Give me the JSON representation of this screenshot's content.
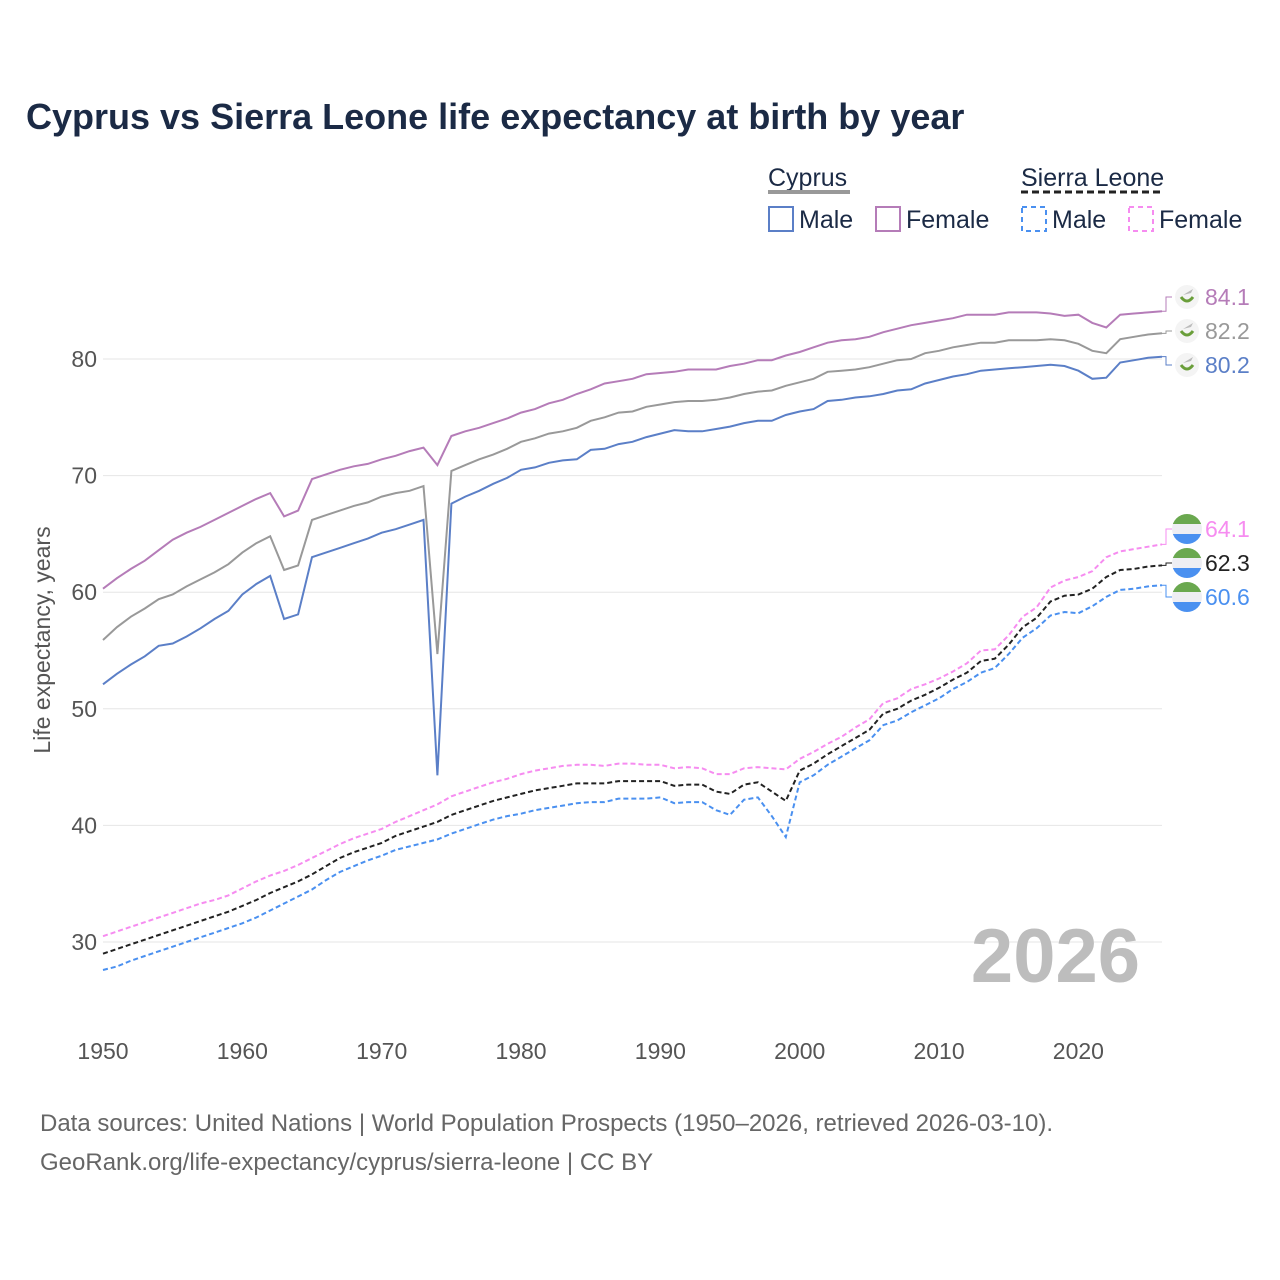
{
  "chart_data": {
    "type": "line",
    "title": "Cyprus vs Sierra Leone life expectancy at birth by year",
    "ylabel": "Life expectancy, years",
    "xlabel": "",
    "xlim": [
      1950,
      2026
    ],
    "ylim": [
      25,
      87
    ],
    "yticks": [
      30,
      40,
      50,
      60,
      70,
      80
    ],
    "xticks": [
      1950,
      1960,
      1970,
      1980,
      1990,
      2000,
      2010,
      2020
    ],
    "grid": true,
    "watermark_year": "2026",
    "legend": {
      "placement": "top-right",
      "groups": [
        {
          "name": "Cyprus",
          "items": [
            "Male",
            "Female"
          ]
        },
        {
          "name": "Sierra Leone",
          "items": [
            "Male",
            "Female"
          ]
        }
      ]
    },
    "x_start": 1950,
    "series": [
      {
        "name": "Cyprus Female",
        "color": "#b57cb8",
        "dash": false,
        "end_label": "84.1",
        "flag": "cyprus",
        "values": [
          60.3,
          61.2,
          62.0,
          62.7,
          63.6,
          64.5,
          65.1,
          65.6,
          66.2,
          66.8,
          67.4,
          68.0,
          68.5,
          66.5,
          67.0,
          69.7,
          70.1,
          70.5,
          70.8,
          71.0,
          71.4,
          71.7,
          72.1,
          72.4,
          70.9,
          73.4,
          73.8,
          74.1,
          74.5,
          74.9,
          75.4,
          75.7,
          76.2,
          76.5,
          77.0,
          77.4,
          77.9,
          78.1,
          78.3,
          78.7,
          78.8,
          78.9,
          79.1,
          79.1,
          79.1,
          79.4,
          79.6,
          79.9,
          79.9,
          80.3,
          80.6,
          81.0,
          81.4,
          81.6,
          81.7,
          81.9,
          82.3,
          82.6,
          82.9,
          83.1,
          83.3,
          83.5,
          83.8,
          83.8,
          83.8,
          84.0,
          84.0,
          84.0,
          83.9,
          83.7,
          83.8,
          83.1,
          82.7,
          83.8,
          83.9,
          84.0,
          84.1
        ]
      },
      {
        "name": "Cyprus",
        "color": "#999999",
        "dash": false,
        "end_label": "82.2",
        "flag": "cyprus",
        "values": [
          55.9,
          57.0,
          57.9,
          58.6,
          59.4,
          59.8,
          60.5,
          61.1,
          61.7,
          62.4,
          63.4,
          64.2,
          64.8,
          61.9,
          62.3,
          66.2,
          66.6,
          67.0,
          67.4,
          67.7,
          68.2,
          68.5,
          68.7,
          69.1,
          54.7,
          70.4,
          70.9,
          71.4,
          71.8,
          72.3,
          72.9,
          73.2,
          73.6,
          73.8,
          74.1,
          74.7,
          75.0,
          75.4,
          75.5,
          75.9,
          76.1,
          76.3,
          76.4,
          76.4,
          76.5,
          76.7,
          77.0,
          77.2,
          77.3,
          77.7,
          78.0,
          78.3,
          78.9,
          79.0,
          79.1,
          79.3,
          79.6,
          79.9,
          80.0,
          80.5,
          80.7,
          81.0,
          81.2,
          81.4,
          81.4,
          81.6,
          81.6,
          81.6,
          81.7,
          81.6,
          81.3,
          80.7,
          80.5,
          81.7,
          81.9,
          82.1,
          82.2
        ]
      },
      {
        "name": "Cyprus Male",
        "color": "#5b7fc7",
        "dash": false,
        "end_label": "80.2",
        "flag": "cyprus",
        "values": [
          52.1,
          53.0,
          53.8,
          54.5,
          55.4,
          55.6,
          56.2,
          56.9,
          57.7,
          58.4,
          59.8,
          60.7,
          61.4,
          57.7,
          58.1,
          63.0,
          63.4,
          63.8,
          64.2,
          64.6,
          65.1,
          65.4,
          65.8,
          66.2,
          44.3,
          67.6,
          68.2,
          68.7,
          69.3,
          69.8,
          70.5,
          70.7,
          71.1,
          71.3,
          71.4,
          72.2,
          72.3,
          72.7,
          72.9,
          73.3,
          73.6,
          73.9,
          73.8,
          73.8,
          74.0,
          74.2,
          74.5,
          74.7,
          74.7,
          75.2,
          75.5,
          75.7,
          76.4,
          76.5,
          76.7,
          76.8,
          77.0,
          77.3,
          77.4,
          77.9,
          78.2,
          78.5,
          78.7,
          79.0,
          79.1,
          79.2,
          79.3,
          79.4,
          79.5,
          79.4,
          79.0,
          78.3,
          78.4,
          79.7,
          79.9,
          80.1,
          80.2
        ]
      },
      {
        "name": "Sierra Leone Female",
        "color": "#f68cf0",
        "dash": true,
        "end_label": "64.1",
        "flag": "sierra-leone",
        "values": [
          30.5,
          30.9,
          31.3,
          31.7,
          32.1,
          32.5,
          32.9,
          33.3,
          33.6,
          34.0,
          34.6,
          35.2,
          35.7,
          36.1,
          36.6,
          37.2,
          37.8,
          38.4,
          38.9,
          39.3,
          39.7,
          40.3,
          40.8,
          41.3,
          41.8,
          42.5,
          42.9,
          43.3,
          43.7,
          44.0,
          44.4,
          44.7,
          44.9,
          45.1,
          45.2,
          45.2,
          45.1,
          45.3,
          45.3,
          45.2,
          45.2,
          44.9,
          45.0,
          44.9,
          44.4,
          44.4,
          44.9,
          45.0,
          44.9,
          44.8,
          45.7,
          46.3,
          47.0,
          47.6,
          48.4,
          49.1,
          50.5,
          50.9,
          51.7,
          52.1,
          52.6,
          53.2,
          53.9,
          55.0,
          55.1,
          56.3,
          57.9,
          58.7,
          60.4,
          61.0,
          61.3,
          61.8,
          63.0,
          63.5,
          63.7,
          63.9,
          64.1
        ]
      },
      {
        "name": "Sierra Leone",
        "color": "#222222",
        "dash": true,
        "end_label": "62.3",
        "flag": "sierra-leone",
        "values": [
          29.0,
          29.4,
          29.8,
          30.2,
          30.6,
          31.0,
          31.4,
          31.8,
          32.2,
          32.6,
          33.1,
          33.6,
          34.2,
          34.7,
          35.2,
          35.8,
          36.5,
          37.2,
          37.7,
          38.1,
          38.5,
          39.1,
          39.5,
          39.9,
          40.3,
          40.9,
          41.3,
          41.7,
          42.1,
          42.4,
          42.7,
          43.0,
          43.2,
          43.4,
          43.6,
          43.6,
          43.6,
          43.8,
          43.8,
          43.8,
          43.8,
          43.4,
          43.5,
          43.5,
          42.9,
          42.7,
          43.5,
          43.7,
          42.9,
          42.1,
          44.7,
          45.3,
          46.1,
          46.8,
          47.5,
          48.2,
          49.6,
          50.0,
          50.7,
          51.2,
          51.8,
          52.5,
          53.1,
          54.1,
          54.3,
          55.5,
          57.0,
          57.8,
          59.2,
          59.7,
          59.8,
          60.3,
          61.3,
          61.9,
          62.0,
          62.2,
          62.3
        ]
      },
      {
        "name": "Sierra Leone Male",
        "color": "#4a90f0",
        "dash": true,
        "end_label": "60.6",
        "flag": "sierra-leone",
        "values": [
          27.6,
          27.9,
          28.4,
          28.8,
          29.2,
          29.6,
          30.0,
          30.4,
          30.8,
          31.2,
          31.6,
          32.1,
          32.7,
          33.3,
          33.9,
          34.5,
          35.3,
          36.0,
          36.5,
          37.0,
          37.4,
          37.9,
          38.2,
          38.5,
          38.8,
          39.3,
          39.7,
          40.1,
          40.5,
          40.8,
          41.0,
          41.3,
          41.5,
          41.7,
          41.9,
          42.0,
          42.0,
          42.3,
          42.3,
          42.3,
          42.4,
          41.9,
          42.0,
          42.0,
          41.3,
          40.9,
          42.2,
          42.4,
          40.8,
          39.0,
          43.7,
          44.3,
          45.2,
          45.9,
          46.6,
          47.3,
          48.6,
          49.0,
          49.7,
          50.3,
          50.9,
          51.7,
          52.3,
          53.1,
          53.5,
          54.7,
          56.1,
          56.9,
          58.0,
          58.3,
          58.2,
          58.8,
          59.6,
          60.2,
          60.3,
          60.5,
          60.6
        ]
      }
    ],
    "footer": [
      "Data sources: United Nations | World Population Prospects (1950–2026, retrieved 2026-03-10).",
      "GeoRank.org/life-expectancy/cyprus/sierra-leone | CC BY"
    ]
  }
}
